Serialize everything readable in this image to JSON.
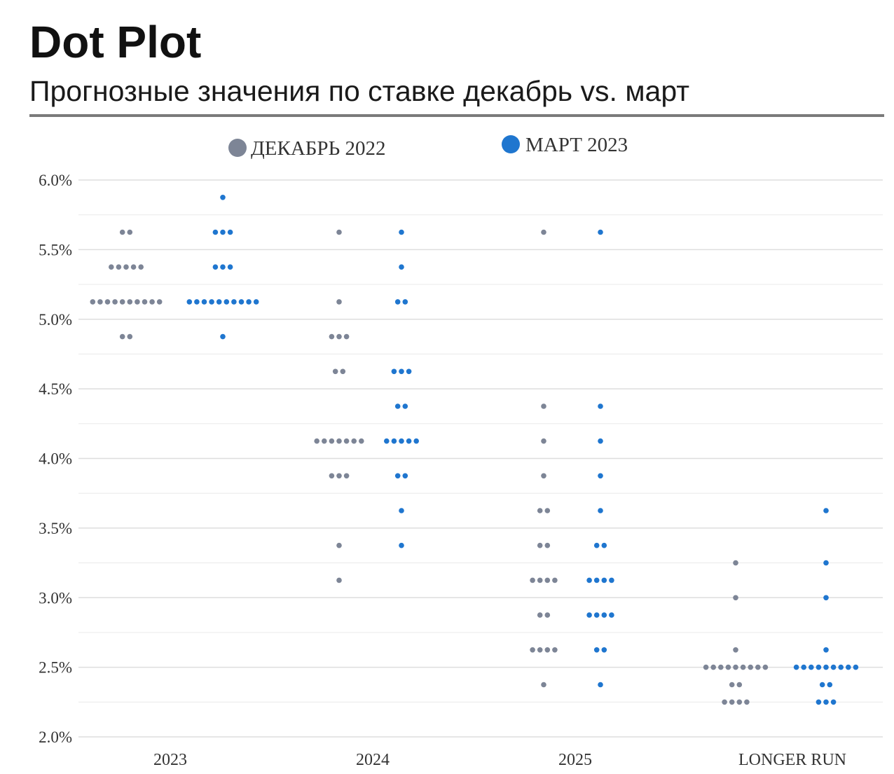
{
  "title": "Dot Plot",
  "subtitle": "Прогнозные значения по ставке декабрь vs. март",
  "colors": {
    "dec": "#7d8596",
    "mar": "#1f76cf",
    "grid": "#e2e2e2",
    "rule": "#7a7a7a"
  },
  "chart_data": {
    "type": "scatter",
    "title": "Dot Plot",
    "subtitle": "Прогнозные значения по ставке декабрь vs. март",
    "ylim": [
      2.0,
      6.0
    ],
    "y_ticks": [
      2.0,
      2.5,
      3.0,
      3.5,
      4.0,
      4.5,
      5.0,
      5.5,
      6.0
    ],
    "y_tick_labels": [
      "2.0%",
      "2.5%",
      "3.0%",
      "3.5%",
      "4.0%",
      "4.5%",
      "5.0%",
      "5.5%",
      "6.0%"
    ],
    "grid": true,
    "legend_position": "top",
    "categories": [
      "2023",
      "2024",
      "2025",
      "LONGER RUN"
    ],
    "series": [
      {
        "name": "ДЕКАБРЬ 2022",
        "key": "dec",
        "groups": [
          [
            [
              5.625,
              2
            ],
            [
              5.375,
              5
            ],
            [
              5.125,
              10
            ],
            [
              4.875,
              2
            ]
          ],
          [
            [
              5.625,
              1
            ],
            [
              5.125,
              1
            ],
            [
              4.875,
              3
            ],
            [
              4.625,
              2
            ],
            [
              4.125,
              7
            ],
            [
              3.875,
              3
            ],
            [
              3.375,
              1
            ],
            [
              3.125,
              1
            ]
          ],
          [
            [
              5.625,
              1
            ],
            [
              4.375,
              1
            ],
            [
              4.125,
              1
            ],
            [
              3.875,
              1
            ],
            [
              3.625,
              2
            ],
            [
              3.375,
              2
            ],
            [
              3.125,
              4
            ],
            [
              2.875,
              2
            ],
            [
              2.625,
              4
            ],
            [
              2.375,
              1
            ]
          ],
          [
            [
              3.25,
              1
            ],
            [
              3.0,
              1
            ],
            [
              2.625,
              1
            ],
            [
              2.5,
              9
            ],
            [
              2.375,
              2
            ],
            [
              2.25,
              4
            ]
          ]
        ]
      },
      {
        "name": "МАРТ 2023",
        "key": "mar",
        "groups": [
          [
            [
              5.875,
              1
            ],
            [
              5.625,
              3
            ],
            [
              5.375,
              3
            ],
            [
              5.125,
              10
            ],
            [
              4.875,
              1
            ]
          ],
          [
            [
              5.625,
              1
            ],
            [
              5.375,
              1
            ],
            [
              5.125,
              2
            ],
            [
              4.625,
              3
            ],
            [
              4.375,
              2
            ],
            [
              4.125,
              5
            ],
            [
              3.875,
              2
            ],
            [
              3.625,
              1
            ],
            [
              3.375,
              1
            ]
          ],
          [
            [
              5.625,
              1
            ],
            [
              4.375,
              1
            ],
            [
              4.125,
              1
            ],
            [
              3.875,
              1
            ],
            [
              3.625,
              1
            ],
            [
              3.375,
              2
            ],
            [
              3.125,
              4
            ],
            [
              2.875,
              4
            ],
            [
              2.625,
              2
            ],
            [
              2.375,
              1
            ]
          ],
          [
            [
              3.625,
              1
            ],
            [
              3.25,
              1
            ],
            [
              3.0,
              1
            ],
            [
              2.625,
              1
            ],
            [
              2.5,
              9
            ],
            [
              2.375,
              2
            ],
            [
              2.25,
              3
            ]
          ]
        ]
      }
    ]
  }
}
